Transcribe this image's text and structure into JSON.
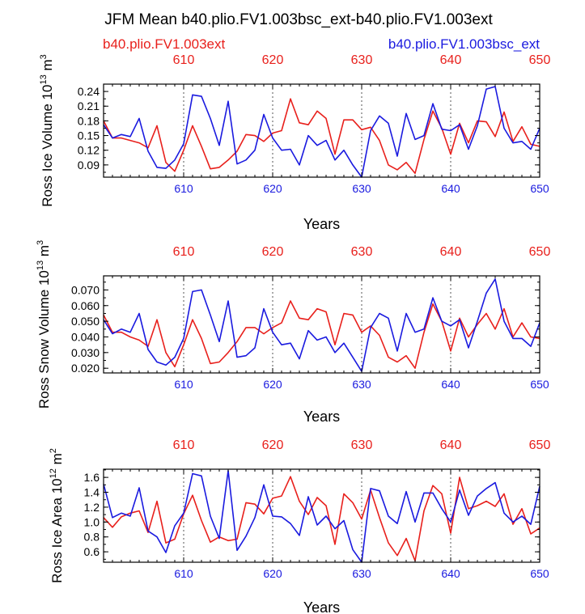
{
  "title": "JFM Mean b40.plio.FV1.003bsc_ext-b40.plio.FV1.003ext",
  "legend": {
    "left": "b40.plio.FV1.003ext",
    "right": "b40.plio.FV1.003bsc_ext"
  },
  "colors": {
    "red": "#e8201c",
    "blue": "#1a1adf",
    "axis": "#000000"
  },
  "chart_data": [
    {
      "type": "line",
      "ylabel_main": "Ross Ice Volume 10",
      "ylabel_exp": "13",
      "ylabel_unit": " m",
      "ylabel_unit_exp": "3",
      "xlabel": "Years",
      "xlim": [
        601,
        650
      ],
      "ylim": [
        0.065,
        0.255
      ],
      "yticks": [
        "0.09",
        "0.12",
        "0.15",
        "0.18",
        "0.21",
        "0.24"
      ],
      "ytick_values": [
        0.09,
        0.12,
        0.15,
        0.18,
        0.21,
        0.24
      ],
      "xticks": [
        "610",
        "620",
        "630",
        "640",
        "650"
      ],
      "xtick_values": [
        610,
        620,
        630,
        640,
        650
      ],
      "x": [
        601,
        602,
        603,
        604,
        605,
        606,
        607,
        608,
        609,
        610,
        611,
        612,
        613,
        614,
        615,
        616,
        617,
        618,
        619,
        620,
        621,
        622,
        623,
        624,
        625,
        626,
        627,
        628,
        629,
        630,
        631,
        632,
        633,
        634,
        635,
        636,
        637,
        638,
        639,
        640,
        641,
        642,
        643,
        644,
        645,
        646,
        647,
        648,
        649,
        650
      ],
      "series": [
        {
          "name": "b40.plio.FV1.003ext",
          "color": "red",
          "values": [
            0.18,
            0.145,
            0.145,
            0.14,
            0.135,
            0.125,
            0.17,
            0.095,
            0.077,
            0.12,
            0.17,
            0.128,
            0.082,
            0.085,
            0.1,
            0.118,
            0.152,
            0.15,
            0.138,
            0.155,
            0.16,
            0.225,
            0.176,
            0.172,
            0.2,
            0.185,
            0.112,
            0.182,
            0.182,
            0.162,
            0.167,
            0.14,
            0.09,
            0.08,
            0.095,
            0.073,
            0.142,
            0.2,
            0.165,
            0.112,
            0.175,
            0.135,
            0.18,
            0.178,
            0.148,
            0.198,
            0.138,
            0.168,
            0.132,
            0.128
          ]
        },
        {
          "name": "b40.plio.FV1.003bsc_ext",
          "color": "blue",
          "values": [
            0.172,
            0.145,
            0.152,
            0.148,
            0.185,
            0.118,
            0.085,
            0.083,
            0.1,
            0.133,
            0.233,
            0.23,
            0.185,
            0.13,
            0.22,
            0.092,
            0.1,
            0.12,
            0.193,
            0.145,
            0.12,
            0.122,
            0.09,
            0.15,
            0.13,
            0.14,
            0.1,
            0.12,
            0.09,
            0.065,
            0.16,
            0.19,
            0.175,
            0.108,
            0.195,
            0.142,
            0.15,
            0.215,
            0.163,
            0.16,
            0.172,
            0.122,
            0.17,
            0.245,
            0.25,
            0.165,
            0.135,
            0.138,
            0.122,
            0.165
          ]
        }
      ]
    },
    {
      "type": "line",
      "ylabel_main": "Ross Snow Volume 10",
      "ylabel_exp": "13",
      "ylabel_unit": " m",
      "ylabel_unit_exp": "3",
      "xlabel": "Years",
      "xlim": [
        601,
        650
      ],
      "ylim": [
        0.017,
        0.079
      ],
      "yticks": [
        "0.020",
        "0.030",
        "0.040",
        "0.050",
        "0.060",
        "0.070"
      ],
      "ytick_values": [
        0.02,
        0.03,
        0.04,
        0.05,
        0.06,
        0.07
      ],
      "xticks": [
        "610",
        "620",
        "630",
        "640",
        "650"
      ],
      "xtick_values": [
        610,
        620,
        630,
        640,
        650
      ],
      "x": [
        601,
        602,
        603,
        604,
        605,
        606,
        607,
        608,
        609,
        610,
        611,
        612,
        613,
        614,
        615,
        616,
        617,
        618,
        619,
        620,
        621,
        622,
        623,
        624,
        625,
        626,
        627,
        628,
        629,
        630,
        631,
        632,
        633,
        634,
        635,
        636,
        637,
        638,
        639,
        640,
        641,
        642,
        643,
        644,
        645,
        646,
        647,
        648,
        649,
        650
      ],
      "series": [
        {
          "name": "b40.plio.FV1.003ext",
          "color": "red",
          "values": [
            0.054,
            0.043,
            0.043,
            0.04,
            0.038,
            0.034,
            0.051,
            0.03,
            0.021,
            0.035,
            0.051,
            0.039,
            0.023,
            0.024,
            0.03,
            0.037,
            0.046,
            0.046,
            0.042,
            0.046,
            0.049,
            0.063,
            0.052,
            0.051,
            0.058,
            0.056,
            0.035,
            0.055,
            0.054,
            0.043,
            0.047,
            0.041,
            0.027,
            0.024,
            0.028,
            0.02,
            0.043,
            0.061,
            0.05,
            0.031,
            0.052,
            0.04,
            0.048,
            0.055,
            0.045,
            0.058,
            0.04,
            0.049,
            0.04,
            0.039
          ]
        },
        {
          "name": "b40.plio.FV1.003bsc_ext",
          "color": "blue",
          "values": [
            0.051,
            0.042,
            0.045,
            0.043,
            0.055,
            0.032,
            0.024,
            0.022,
            0.027,
            0.039,
            0.069,
            0.07,
            0.054,
            0.037,
            0.063,
            0.027,
            0.028,
            0.033,
            0.058,
            0.043,
            0.035,
            0.036,
            0.026,
            0.044,
            0.038,
            0.04,
            0.03,
            0.036,
            0.027,
            0.018,
            0.046,
            0.055,
            0.052,
            0.031,
            0.055,
            0.043,
            0.045,
            0.065,
            0.05,
            0.047,
            0.051,
            0.033,
            0.05,
            0.068,
            0.077,
            0.05,
            0.039,
            0.039,
            0.034,
            0.049
          ]
        }
      ]
    },
    {
      "type": "line",
      "ylabel_main": "Ross Ice Area 10",
      "ylabel_exp": "12",
      "ylabel_unit": " m",
      "ylabel_unit_exp": "2",
      "xlabel": "Years",
      "xlim": [
        601,
        650
      ],
      "ylim": [
        0.46,
        1.71
      ],
      "yticks": [
        "0.6",
        "0.8",
        "1.0",
        "1.2",
        "1.4",
        "1.6"
      ],
      "ytick_values": [
        0.6,
        0.8,
        1.0,
        1.2,
        1.4,
        1.6
      ],
      "xticks": [
        "610",
        "620",
        "630",
        "640",
        "650"
      ],
      "xtick_values": [
        610,
        620,
        630,
        640,
        650
      ],
      "x": [
        601,
        602,
        603,
        604,
        605,
        606,
        607,
        608,
        609,
        610,
        611,
        612,
        613,
        614,
        615,
        616,
        617,
        618,
        619,
        620,
        621,
        622,
        623,
        624,
        625,
        626,
        627,
        628,
        629,
        630,
        631,
        632,
        633,
        634,
        635,
        636,
        637,
        638,
        639,
        640,
        641,
        642,
        643,
        644,
        645,
        646,
        647,
        648,
        649,
        650
      ],
      "series": [
        {
          "name": "b40.plio.FV1.003ext",
          "color": "red",
          "values": [
            1.06,
            0.93,
            1.07,
            1.12,
            1.15,
            0.86,
            1.28,
            0.72,
            0.77,
            1.11,
            1.36,
            1.02,
            0.73,
            0.8,
            0.75,
            0.77,
            1.26,
            1.24,
            1.11,
            1.32,
            1.35,
            1.61,
            1.28,
            1.1,
            1.33,
            1.22,
            0.7,
            1.38,
            1.26,
            1.04,
            1.43,
            1.06,
            0.72,
            0.55,
            0.78,
            0.48,
            1.15,
            1.49,
            1.38,
            0.85,
            1.6,
            1.18,
            1.22,
            1.28,
            1.21,
            1.38,
            0.97,
            1.18,
            0.84,
            0.92
          ]
        },
        {
          "name": "b40.plio.FV1.003bsc_ext",
          "color": "blue",
          "values": [
            1.51,
            1.06,
            1.12,
            1.08,
            1.46,
            0.88,
            0.8,
            0.59,
            0.95,
            1.12,
            1.65,
            1.62,
            1.08,
            0.78,
            1.69,
            0.62,
            0.81,
            1.06,
            1.5,
            1.08,
            1.07,
            0.98,
            0.82,
            1.34,
            0.96,
            1.08,
            0.91,
            1.02,
            0.63,
            0.46,
            1.45,
            1.42,
            1.08,
            0.98,
            1.41,
            1.0,
            1.39,
            1.39,
            1.18,
            1.0,
            1.43,
            1.09,
            1.35,
            1.45,
            1.53,
            1.12,
            1.0,
            1.08,
            0.97,
            1.48
          ]
        }
      ]
    }
  ]
}
